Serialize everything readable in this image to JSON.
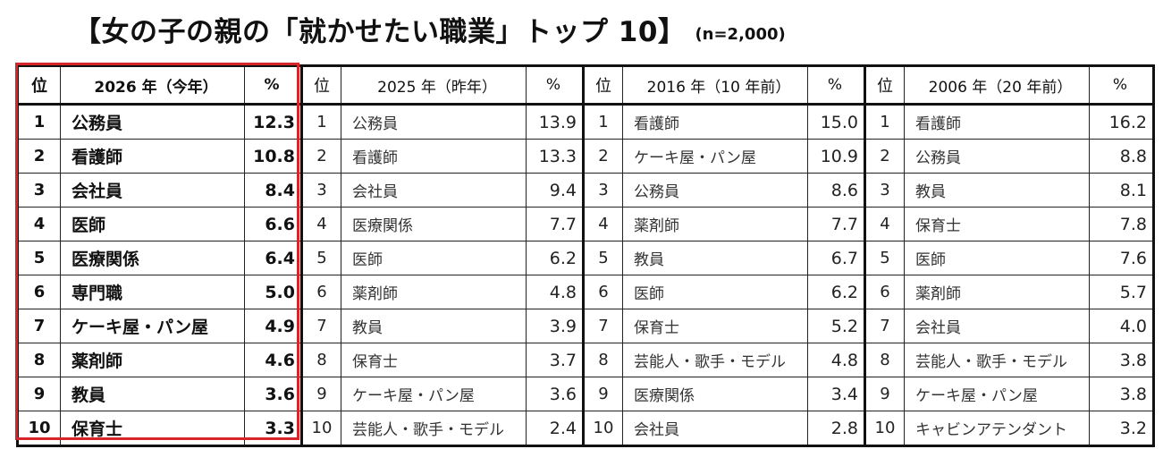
{
  "title": "【女の子の親の「就かせたい職業」トップ 10】",
  "subtitle": "(n=2,000)",
  "colors": {
    "highlight": "#d6262b"
  },
  "groups": [
    {
      "rank_header": "位",
      "year_header": "2026 年（今年）",
      "pct_header": "%",
      "rows": [
        {
          "rank": "1",
          "job": "公務員",
          "pct": "12.3"
        },
        {
          "rank": "2",
          "job": "看護師",
          "pct": "10.8"
        },
        {
          "rank": "3",
          "job": "会社員",
          "pct": "8.4"
        },
        {
          "rank": "4",
          "job": "医師",
          "pct": "6.6"
        },
        {
          "rank": "5",
          "job": "医療関係",
          "pct": "6.4"
        },
        {
          "rank": "6",
          "job": "専門職",
          "pct": "5.0"
        },
        {
          "rank": "7",
          "job": "ケーキ屋・パン屋",
          "pct": "4.9"
        },
        {
          "rank": "8",
          "job": "薬剤師",
          "pct": "4.6"
        },
        {
          "rank": "9",
          "job": "教員",
          "pct": "3.6"
        },
        {
          "rank": "10",
          "job": "保育士",
          "pct": "3.3"
        }
      ]
    },
    {
      "rank_header": "位",
      "year_header": "2025 年（昨年）",
      "pct_header": "%",
      "rows": [
        {
          "rank": "1",
          "job": "公務員",
          "pct": "13.9"
        },
        {
          "rank": "2",
          "job": "看護師",
          "pct": "13.3"
        },
        {
          "rank": "3",
          "job": "会社員",
          "pct": "9.4"
        },
        {
          "rank": "4",
          "job": "医療関係",
          "pct": "7.7"
        },
        {
          "rank": "5",
          "job": "医師",
          "pct": "6.2"
        },
        {
          "rank": "6",
          "job": "薬剤師",
          "pct": "4.8"
        },
        {
          "rank": "7",
          "job": "教員",
          "pct": "3.9"
        },
        {
          "rank": "8",
          "job": "保育士",
          "pct": "3.7"
        },
        {
          "rank": "9",
          "job": "ケーキ屋・パン屋",
          "pct": "3.6"
        },
        {
          "rank": "10",
          "job": "芸能人・歌手・モデル",
          "pct": "2.4"
        }
      ]
    },
    {
      "rank_header": "位",
      "year_header": "2016 年（10 年前）",
      "pct_header": "%",
      "rows": [
        {
          "rank": "1",
          "job": "看護師",
          "pct": "15.0"
        },
        {
          "rank": "2",
          "job": "ケーキ屋・パン屋",
          "pct": "10.9"
        },
        {
          "rank": "3",
          "job": "公務員",
          "pct": "8.6"
        },
        {
          "rank": "4",
          "job": "薬剤師",
          "pct": "7.7"
        },
        {
          "rank": "5",
          "job": "教員",
          "pct": "6.7"
        },
        {
          "rank": "6",
          "job": "医師",
          "pct": "6.2"
        },
        {
          "rank": "7",
          "job": "保育士",
          "pct": "5.2"
        },
        {
          "rank": "8",
          "job": "芸能人・歌手・モデル",
          "pct": "4.8"
        },
        {
          "rank": "9",
          "job": "医療関係",
          "pct": "3.4"
        },
        {
          "rank": "10",
          "job": "会社員",
          "pct": "2.8"
        }
      ]
    },
    {
      "rank_header": "位",
      "year_header": "2006 年（20 年前）",
      "pct_header": "%",
      "rows": [
        {
          "rank": "1",
          "job": "看護師",
          "pct": "16.2"
        },
        {
          "rank": "2",
          "job": "公務員",
          "pct": "8.8"
        },
        {
          "rank": "3",
          "job": "教員",
          "pct": "8.1"
        },
        {
          "rank": "4",
          "job": "保育士",
          "pct": "7.8"
        },
        {
          "rank": "5",
          "job": "医師",
          "pct": "7.6"
        },
        {
          "rank": "6",
          "job": "薬剤師",
          "pct": "5.7"
        },
        {
          "rank": "7",
          "job": "会社員",
          "pct": "4.0"
        },
        {
          "rank": "8",
          "job": "芸能人・歌手・モデル",
          "pct": "3.8"
        },
        {
          "rank": "9",
          "job": "ケーキ屋・パン屋",
          "pct": "3.8"
        },
        {
          "rank": "10",
          "job": "キャビンアテンダント",
          "pct": "3.2"
        }
      ]
    }
  ]
}
